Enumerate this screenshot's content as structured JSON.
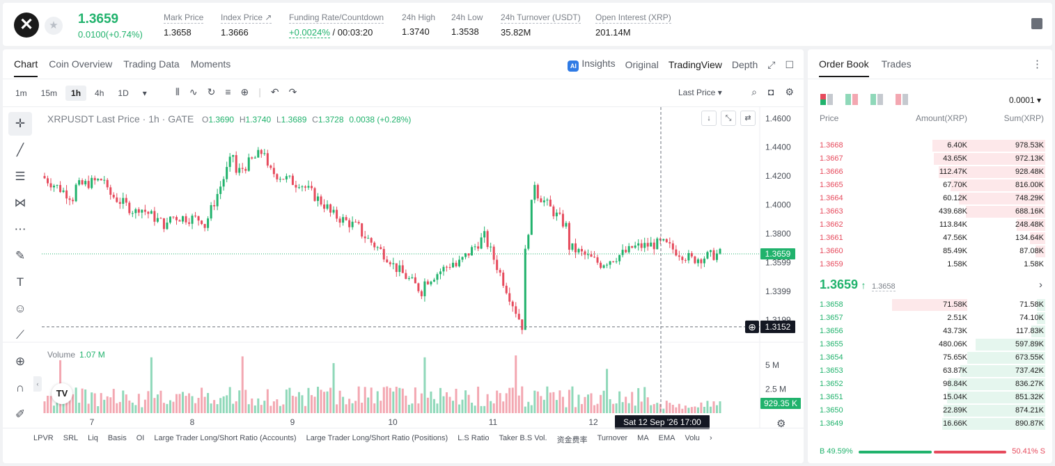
{
  "header": {
    "symbol_icon": "xrp-logo",
    "favorite_icon": "star-icon",
    "last_price": "1.3659",
    "change": "0.0100(+0.74%)",
    "stats": [
      {
        "label": "Mark Price",
        "value": "1.3658"
      },
      {
        "label": "Index Price ↗",
        "value": "1.3666"
      },
      {
        "label": "Funding Rate/Countdown",
        "value_green": "+0.0024%",
        "value": " / 00:03:20"
      },
      {
        "label": "24h High",
        "value": "1.3740"
      },
      {
        "label": "24h Low",
        "value": "1.3538"
      },
      {
        "label": "24h Turnover (USDT)",
        "value": "35.82M"
      },
      {
        "label": "Open Interest (XRP)",
        "value": "201.14M"
      }
    ]
  },
  "chart_tabs": [
    "Chart",
    "Coin Overview",
    "Trading Data",
    "Moments"
  ],
  "view_tabs": {
    "insights": "Insights",
    "original": "Original",
    "tradingview": "TradingView",
    "depth": "Depth"
  },
  "timeframes": [
    "1m",
    "15m",
    "1h",
    "4h",
    "1D"
  ],
  "selected_timeframe": "1h",
  "price_type": "Last Price",
  "legend": {
    "title": "XRPUSDT Last Price · 1h · GATE",
    "o_label": "O",
    "o": "1.3690",
    "h_label": "H",
    "h": "1.3740",
    "l_label": "L",
    "l": "1.3689",
    "c_label": "C",
    "c": "1.3728",
    "change": "0.0038 (+0.28%)"
  },
  "volume_legend": {
    "label": "Volume",
    "value": "1.07 M"
  },
  "crosshair": {
    "price": "1.3152",
    "time": "Sat 12 Sep '26   17:00"
  },
  "last_price_tag": "1.3659",
  "volume_tag": "929.35 K",
  "indicators": [
    "LPVR",
    "SRL",
    "Liq",
    "Basis",
    "OI",
    "Large Trader Long/Short Ratio (Accounts)",
    "Large Trader Long/Short Ratio (Positions)",
    "L.S Ratio",
    "Taker B.S Vol.",
    "资金费率",
    "Turnover",
    "MA",
    "EMA",
    "Volu"
  ],
  "chart_data": {
    "type": "candlestick",
    "price_axis_ticks": [
      "1.4600",
      "1.4400",
      "1.4200",
      "1.4000",
      "1.3800",
      "1.3599",
      "1.3399",
      "1.3199"
    ],
    "volume_axis_ticks": [
      "5 M",
      "2.5 M"
    ],
    "x_tick_labels": [
      "7",
      "8",
      "9",
      "10",
      "11",
      "12"
    ],
    "ylim": [
      1.305,
      1.4645
    ],
    "volume_max": 6.0,
    "segments": [
      [
        1.42,
        1.405
      ],
      [
        1.412,
        1.418
      ],
      [
        1.41,
        1.395
      ],
      [
        1.4,
        1.385
      ],
      [
        1.392,
        1.39
      ],
      [
        1.38,
        1.435
      ],
      [
        1.42,
        1.438
      ],
      [
        1.425,
        1.415
      ],
      [
        1.418,
        1.398
      ],
      [
        1.395,
        1.384
      ],
      [
        1.382,
        1.362
      ],
      [
        1.36,
        1.34
      ],
      [
        1.345,
        1.36
      ],
      [
        1.355,
        1.378
      ],
      [
        1.378,
        1.316
      ],
      [
        1.35,
        1.416
      ],
      [
        1.41,
        1.385
      ],
      [
        1.372,
        1.36
      ],
      [
        1.358,
        1.368
      ],
      [
        1.37,
        1.373
      ],
      [
        1.374,
        1.362
      ],
      [
        1.362,
        1.366
      ]
    ],
    "segment_counts": [
      10,
      10,
      10,
      10,
      11,
      10,
      10,
      10,
      10,
      10,
      10,
      10,
      10,
      10,
      12,
      4,
      10,
      10,
      10,
      10,
      10,
      9
    ],
    "volume_peaks": [
      5.5,
      5.8,
      5.9,
      5.2,
      5.8,
      6.0,
      4.6,
      4.9,
      3.0
    ]
  },
  "orderbook": {
    "tabs": [
      "Order Book",
      "Trades"
    ],
    "precision": "0.0001",
    "headers": {
      "price": "Price",
      "amount": "Amount(XRP)",
      "sum": "Sum(XRP)"
    },
    "asks": [
      {
        "price": "1.3668",
        "amount": "6.40K",
        "sum": "978.53K",
        "depth": 0.95
      },
      {
        "price": "1.3667",
        "amount": "43.65K",
        "sum": "972.13K",
        "depth": 0.94
      },
      {
        "price": "1.3666",
        "amount": "112.47K",
        "sum": "928.48K",
        "depth": 0.9
      },
      {
        "price": "1.3665",
        "amount": "67.70K",
        "sum": "816.00K",
        "depth": 0.8
      },
      {
        "price": "1.3664",
        "amount": "60.12K",
        "sum": "748.29K",
        "depth": 0.73
      },
      {
        "price": "1.3663",
        "amount": "439.68K",
        "sum": "688.16K",
        "depth": 0.67
      },
      {
        "price": "1.3662",
        "amount": "113.84K",
        "sum": "248.48K",
        "depth": 0.24
      },
      {
        "price": "1.3661",
        "amount": "47.56K",
        "sum": "134.64K",
        "depth": 0.13
      },
      {
        "price": "1.3660",
        "amount": "85.49K",
        "sum": "87.08K",
        "depth": 0.085
      },
      {
        "price": "1.3659",
        "amount": "1.58K",
        "sum": "1.58K",
        "depth": 0.0
      }
    ],
    "mid_price": "1.3659",
    "mid_arrow": "↑",
    "mark_price": "1.3658",
    "bids": [
      {
        "price": "1.3658",
        "amount": "71.58K",
        "sum": "71.58K",
        "depth": 0.07,
        "amt_bar": 0.36
      },
      {
        "price": "1.3657",
        "amount": "2.51K",
        "sum": "74.10K",
        "depth": 0.072
      },
      {
        "price": "1.3656",
        "amount": "43.73K",
        "sum": "117.83K",
        "depth": 0.12
      },
      {
        "price": "1.3655",
        "amount": "480.06K",
        "sum": "597.89K",
        "depth": 0.59
      },
      {
        "price": "1.3654",
        "amount": "75.65K",
        "sum": "673.55K",
        "depth": 0.66
      },
      {
        "price": "1.3653",
        "amount": "63.87K",
        "sum": "737.42K",
        "depth": 0.72
      },
      {
        "price": "1.3652",
        "amount": "98.84K",
        "sum": "836.27K",
        "depth": 0.82
      },
      {
        "price": "1.3651",
        "amount": "15.04K",
        "sum": "851.32K",
        "depth": 0.83
      },
      {
        "price": "1.3650",
        "amount": "22.89K",
        "sum": "874.21K",
        "depth": 0.86
      },
      {
        "price": "1.3649",
        "amount": "16.66K",
        "sum": "890.87K",
        "depth": 0.87
      }
    ],
    "buy_ratio": "B 49.59%",
    "sell_ratio": "50.41% S",
    "buy_fraction": 0.4959
  },
  "colors": {
    "up": "#20b26c",
    "down": "#e64a5c",
    "up_soft": "#8fd8b9",
    "down_soft": "#f3a7b1"
  }
}
